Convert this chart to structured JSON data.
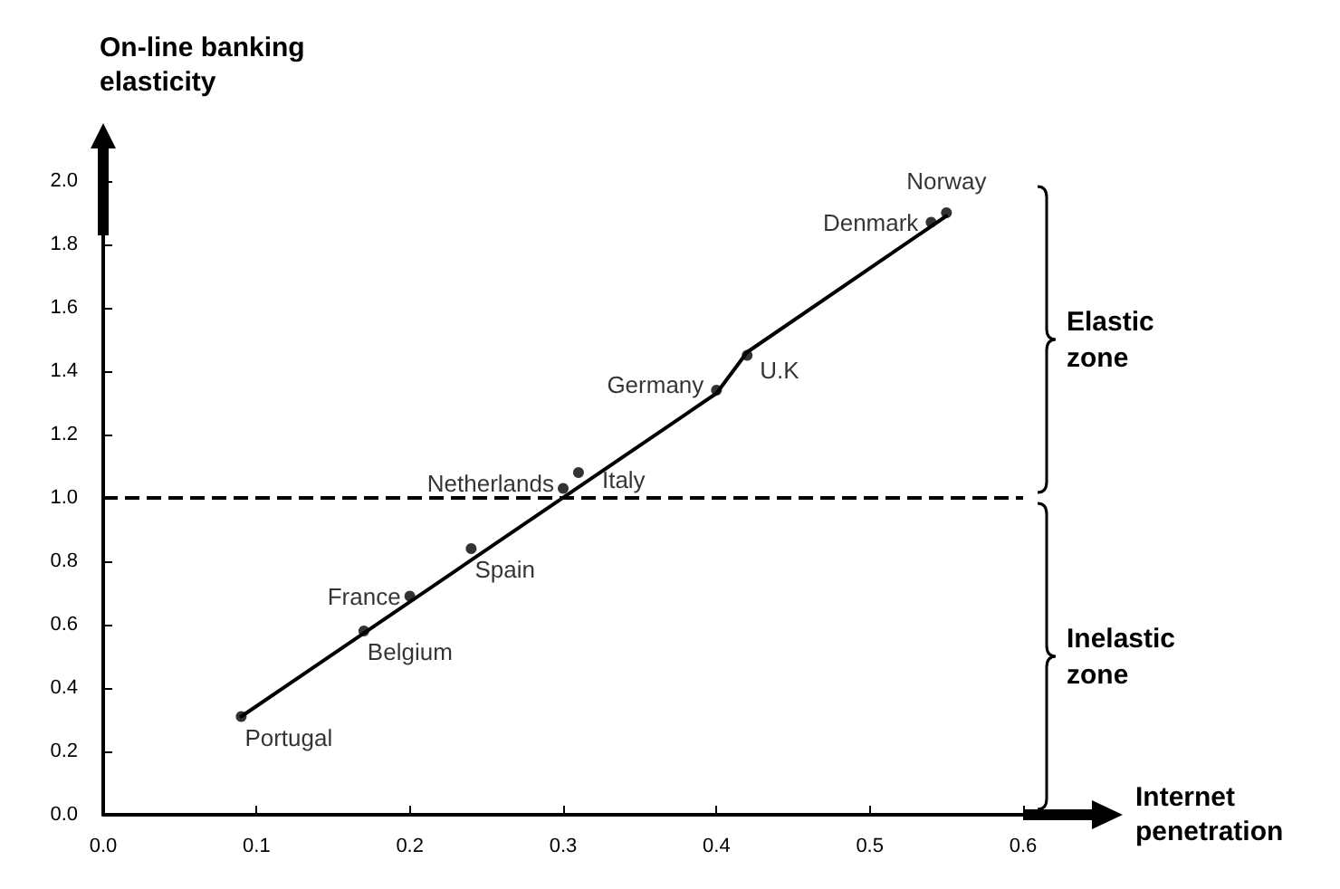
{
  "chart_data": {
    "type": "scatter",
    "xlabel": "Internet penetration",
    "ylabel": "On-line banking elasticity",
    "xlim": [
      0,
      0.6
    ],
    "xticks": [
      {
        "value": 0,
        "label": "0.0"
      },
      0.1,
      0.2,
      0.3,
      0.4,
      0.5,
      0.6
    ],
    "ylim": [
      0,
      2.0
    ],
    "yticks": [
      {
        "value": 0,
        "label": "0.0"
      },
      0.2,
      0.4,
      0.6,
      0.8,
      {
        "value": 1.0,
        "label": "1.0"
      },
      1.2,
      1.4,
      1.6,
      1.8,
      {
        "value": 2.0,
        "label": "2.0"
      }
    ],
    "grid": false,
    "marker": "circle",
    "series": [
      {
        "color": "#000000",
        "x": [
          0.09,
          0.17,
          0.2,
          0.24,
          0.3,
          0.31,
          0.4,
          0.42,
          0.54,
          0.55
        ],
        "values": [
          0.31,
          0.58,
          0.69,
          0.84,
          1.03,
          1.08,
          1.34,
          1.45,
          1.87,
          1.9
        ]
      },
      {
        "type": "line",
        "color": "#000000",
        "marker": "none",
        "line_style": "solid",
        "x": [
          0.09,
          0.4,
          0.42,
          0.55
        ],
        "values": [
          0.31,
          1.33,
          1.46,
          1.89
        ]
      }
    ],
    "ref_lines": [
      {
        "axis": "y",
        "value": 1.0,
        "line_style": "dashed",
        "color": "#000000"
      }
    ],
    "annotations": [
      {
        "text": "Portugal",
        "x": 0.09,
        "y": 0.31
      },
      {
        "text": "France",
        "x": 0.2,
        "y": 0.69
      },
      {
        "text": "Belgium",
        "x": 0.17,
        "y": 0.58
      },
      {
        "text": "Netherlands",
        "x": 0.3,
        "y": 1.03
      },
      {
        "text": "Spain",
        "x": 0.24,
        "y": 0.84
      },
      {
        "text": "Germany",
        "x": 0.4,
        "y": 1.34
      },
      {
        "text": "Italy",
        "x": 0.31,
        "y": 1.08
      },
      {
        "text": "Denmark",
        "x": 0.54,
        "y": 1.87
      },
      {
        "text": "U.K",
        "x": 0.42,
        "y": 1.45
      },
      {
        "text": "Norway",
        "x": 0.55,
        "y": 1.9
      },
      "Elastic zone",
      "Inelastic zone"
    ]
  }
}
